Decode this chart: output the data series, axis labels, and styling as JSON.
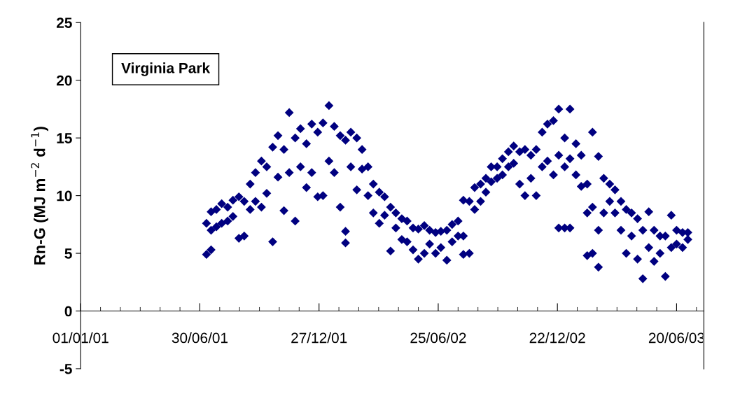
{
  "chart_data": {
    "type": "scatter",
    "title": "Virginia Park",
    "ylabel": "Rn-G (MJ m$^{−2}$ d$^{−1}$)",
    "marker": "diamond",
    "grid": false,
    "legend": false,
    "xlim": [
      "2001-01-01",
      "2003-07-31"
    ],
    "ylim": [
      -5,
      25
    ],
    "yticks": [
      -5,
      0,
      5,
      10,
      15,
      20,
      25
    ],
    "xticks": [
      {
        "value": "2001-01-01",
        "label": "01/01/01"
      },
      {
        "value": "2001-01-31",
        "label": null
      },
      {
        "value": "2001-03-02",
        "label": null
      },
      {
        "value": "2001-04-01",
        "label": null
      },
      {
        "value": "2001-05-01",
        "label": null
      },
      {
        "value": "2001-05-31",
        "label": null
      },
      {
        "value": "2001-06-30",
        "label": "30/06/01"
      },
      {
        "value": "2001-07-30",
        "label": null
      },
      {
        "value": "2001-08-29",
        "label": null
      },
      {
        "value": "2001-09-28",
        "label": null
      },
      {
        "value": "2001-10-28",
        "label": null
      },
      {
        "value": "2001-11-27",
        "label": null
      },
      {
        "value": "2001-12-27",
        "label": "27/12/01"
      },
      {
        "value": "2002-01-26",
        "label": null
      },
      {
        "value": "2002-02-25",
        "label": null
      },
      {
        "value": "2002-03-27",
        "label": null
      },
      {
        "value": "2002-04-26",
        "label": null
      },
      {
        "value": "2002-05-26",
        "label": null
      },
      {
        "value": "2002-06-25",
        "label": "25/06/02"
      },
      {
        "value": "2002-07-25",
        "label": null
      },
      {
        "value": "2002-08-24",
        "label": null
      },
      {
        "value": "2002-09-23",
        "label": null
      },
      {
        "value": "2002-10-23",
        "label": null
      },
      {
        "value": "2002-11-22",
        "label": null
      },
      {
        "value": "2002-12-22",
        "label": "22/12/02"
      },
      {
        "value": "2003-01-21",
        "label": null
      },
      {
        "value": "2003-02-20",
        "label": null
      },
      {
        "value": "2003-03-22",
        "label": null
      },
      {
        "value": "2003-04-21",
        "label": null
      },
      {
        "value": "2003-05-21",
        "label": null
      },
      {
        "value": "2003-06-20",
        "label": "20/06/03"
      },
      {
        "value": "2003-07-20",
        "label": null
      }
    ],
    "series": [
      {
        "color": "#000080",
        "x": [
          "2001-07-10",
          "2001-07-10",
          "2001-07-17",
          "2001-07-17",
          "2001-07-17",
          "2001-07-25",
          "2001-07-25",
          "2001-08-02",
          "2001-08-02",
          "2001-08-11",
          "2001-08-11",
          "2001-08-19",
          "2001-08-19",
          "2001-08-28",
          "2001-08-28",
          "2001-09-05",
          "2001-09-05",
          "2001-09-14",
          "2001-09-14",
          "2001-09-22",
          "2001-09-22",
          "2001-10-01",
          "2001-10-01",
          "2001-10-09",
          "2001-10-09",
          "2001-10-18",
          "2001-10-18",
          "2001-10-26",
          "2001-10-26",
          "2001-11-04",
          "2001-11-04",
          "2001-11-12",
          "2001-11-12",
          "2001-11-21",
          "2001-11-21",
          "2001-11-29",
          "2001-11-29",
          "2001-12-08",
          "2001-12-08",
          "2001-12-16",
          "2001-12-16",
          "2001-12-25",
          "2001-12-25",
          "2002-01-02",
          "2002-01-02",
          "2002-01-11",
          "2002-01-11",
          "2002-01-19",
          "2002-01-19",
          "2002-01-28",
          "2002-01-28",
          "2002-02-05",
          "2002-02-05",
          "2002-02-05",
          "2002-02-13",
          "2002-02-13",
          "2002-02-22",
          "2002-02-22",
          "2002-03-02",
          "2002-03-02",
          "2002-03-11",
          "2002-03-11",
          "2002-03-19",
          "2002-03-19",
          "2002-03-28",
          "2002-03-28",
          "2002-04-05",
          "2002-04-05",
          "2002-04-14",
          "2002-04-14",
          "2002-04-22",
          "2002-04-22",
          "2002-05-01",
          "2002-05-01",
          "2002-05-09",
          "2002-05-09",
          "2002-05-18",
          "2002-05-18",
          "2002-05-26",
          "2002-05-26",
          "2002-06-04",
          "2002-06-04",
          "2002-06-12",
          "2002-06-12",
          "2002-06-21",
          "2002-06-21",
          "2002-06-29",
          "2002-06-29",
          "2002-07-08",
          "2002-07-08",
          "2002-07-16",
          "2002-07-16",
          "2002-07-25",
          "2002-07-25",
          "2002-08-02",
          "2002-08-02",
          "2002-08-02",
          "2002-08-11",
          "2002-08-11",
          "2002-08-19",
          "2002-08-19",
          "2002-08-28",
          "2002-08-28",
          "2002-09-05",
          "2002-09-05",
          "2002-09-13",
          "2002-09-13",
          "2002-09-22",
          "2002-09-22",
          "2002-09-30",
          "2002-09-30",
          "2002-10-09",
          "2002-10-09",
          "2002-10-17",
          "2002-10-17",
          "2002-10-26",
          "2002-10-26",
          "2002-11-03",
          "2002-11-03",
          "2002-11-12",
          "2002-11-12",
          "2002-11-20",
          "2002-11-20",
          "2002-11-29",
          "2002-11-29",
          "2002-12-07",
          "2002-12-07",
          "2002-12-16",
          "2002-12-16",
          "2002-12-24",
          "2002-12-24",
          "2002-12-24",
          "2003-01-02",
          "2003-01-02",
          "2003-01-02",
          "2003-01-10",
          "2003-01-10",
          "2003-01-10",
          "2003-01-19",
          "2003-01-19",
          "2003-01-27",
          "2003-01-27",
          "2003-02-05",
          "2003-02-05",
          "2003-02-05",
          "2003-02-13",
          "2003-02-13",
          "2003-02-13",
          "2003-02-22",
          "2003-02-22",
          "2003-02-22",
          "2003-03-02",
          "2003-03-02",
          "2003-03-11",
          "2003-03-11",
          "2003-03-19",
          "2003-03-19",
          "2003-03-28",
          "2003-03-28",
          "2003-04-05",
          "2003-04-05",
          "2003-04-13",
          "2003-04-13",
          "2003-04-22",
          "2003-04-22",
          "2003-04-30",
          "2003-04-30",
          "2003-05-09",
          "2003-05-09",
          "2003-05-17",
          "2003-05-17",
          "2003-05-26",
          "2003-05-26",
          "2003-06-03",
          "2003-06-03",
          "2003-06-12",
          "2003-06-12",
          "2003-06-20",
          "2003-06-20",
          "2003-06-29",
          "2003-06-29",
          "2003-07-07",
          "2003-07-07"
        ],
        "values": [
          7.6,
          4.9,
          7.0,
          5.3,
          8.6,
          8.8,
          7.3,
          9.3,
          7.6,
          9.0,
          7.8,
          9.6,
          8.2,
          9.9,
          6.3,
          9.5,
          6.5,
          11.0,
          8.8,
          12.0,
          9.5,
          13.0,
          9.0,
          12.5,
          10.2,
          14.2,
          6.0,
          15.2,
          11.6,
          14.0,
          8.7,
          17.2,
          12.0,
          15.0,
          7.8,
          15.8,
          12.5,
          14.5,
          10.7,
          16.2,
          12.0,
          15.5,
          9.9,
          16.3,
          10.0,
          17.8,
          13.0,
          16.0,
          12.0,
          15.2,
          9.0,
          14.8,
          6.9,
          5.9,
          15.5,
          12.5,
          15.0,
          10.5,
          14.0,
          12.3,
          12.5,
          10.0,
          11.0,
          8.5,
          10.3,
          7.6,
          9.9,
          8.3,
          9.0,
          5.2,
          8.5,
          7.2,
          8.0,
          6.2,
          7.8,
          6.0,
          7.2,
          5.3,
          7.1,
          4.5,
          7.4,
          5.0,
          7.0,
          5.8,
          6.8,
          5.0,
          6.9,
          5.5,
          7.0,
          4.4,
          7.5,
          6.0,
          7.8,
          6.5,
          9.6,
          6.5,
          4.9,
          9.5,
          5.0,
          10.7,
          8.8,
          11.0,
          9.5,
          11.5,
          10.3,
          12.5,
          11.2,
          12.5,
          11.5,
          13.2,
          11.8,
          13.8,
          12.5,
          14.3,
          12.8,
          13.8,
          11.0,
          14.0,
          10.0,
          13.5,
          11.5,
          14.0,
          10.0,
          15.5,
          12.5,
          16.2,
          13.0,
          16.5,
          11.8,
          17.5,
          13.5,
          7.2,
          15.0,
          12.5,
          7.2,
          17.5,
          13.2,
          7.2,
          14.5,
          11.8,
          13.5,
          10.8,
          11.0,
          8.5,
          4.8,
          15.5,
          9.0,
          5.0,
          13.4,
          7.0,
          3.8,
          11.5,
          8.5,
          11.0,
          9.5,
          10.5,
          8.5,
          9.5,
          7.0,
          8.8,
          5.0,
          8.5,
          6.5,
          8.0,
          4.5,
          7.0,
          2.8,
          8.6,
          5.5,
          7.0,
          4.3,
          6.5,
          5.0,
          6.5,
          3.0,
          8.3,
          5.5,
          7.0,
          5.8,
          6.8,
          5.5,
          6.8,
          6.2
        ]
      }
    ]
  }
}
